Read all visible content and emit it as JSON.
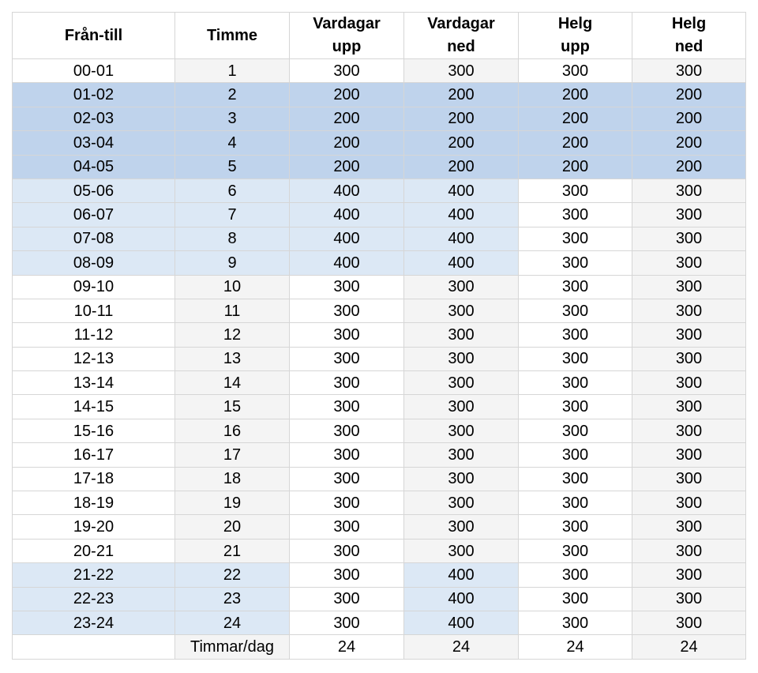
{
  "headers": [
    {
      "line1": "Från-till",
      "line2": ""
    },
    {
      "line1": "Timme",
      "line2": ""
    },
    {
      "line1": "Vardagar",
      "line2": "upp"
    },
    {
      "line1": "Vardagar",
      "line2": "ned"
    },
    {
      "line1": "Helg",
      "line2": "upp"
    },
    {
      "line1": "Helg",
      "line2": "ned"
    }
  ],
  "colors": {
    "white": "#ffffff",
    "gray": "#f4f4f4",
    "dark_blue": "#bfd3ec",
    "light_blue": "#dce8f5"
  },
  "rows": [
    {
      "cells": [
        "00-01",
        "1",
        "300",
        "300",
        "300",
        "300"
      ],
      "shade": [
        "w",
        "g",
        "w",
        "g",
        "w",
        "g"
      ]
    },
    {
      "cells": [
        "01-02",
        "2",
        "200",
        "200",
        "200",
        "200"
      ],
      "shade": [
        "d",
        "d",
        "d",
        "d",
        "d",
        "d"
      ]
    },
    {
      "cells": [
        "02-03",
        "3",
        "200",
        "200",
        "200",
        "200"
      ],
      "shade": [
        "d",
        "d",
        "d",
        "d",
        "d",
        "d"
      ]
    },
    {
      "cells": [
        "03-04",
        "4",
        "200",
        "200",
        "200",
        "200"
      ],
      "shade": [
        "d",
        "d",
        "d",
        "d",
        "d",
        "d"
      ]
    },
    {
      "cells": [
        "04-05",
        "5",
        "200",
        "200",
        "200",
        "200"
      ],
      "shade": [
        "d",
        "d",
        "d",
        "d",
        "d",
        "d"
      ]
    },
    {
      "cells": [
        "05-06",
        "6",
        "400",
        "400",
        "300",
        "300"
      ],
      "shade": [
        "l",
        "l",
        "l",
        "l",
        "w",
        "g"
      ]
    },
    {
      "cells": [
        "06-07",
        "7",
        "400",
        "400",
        "300",
        "300"
      ],
      "shade": [
        "l",
        "l",
        "l",
        "l",
        "w",
        "g"
      ]
    },
    {
      "cells": [
        "07-08",
        "8",
        "400",
        "400",
        "300",
        "300"
      ],
      "shade": [
        "l",
        "l",
        "l",
        "l",
        "w",
        "g"
      ]
    },
    {
      "cells": [
        "08-09",
        "9",
        "400",
        "400",
        "300",
        "300"
      ],
      "shade": [
        "l",
        "l",
        "l",
        "l",
        "w",
        "g"
      ]
    },
    {
      "cells": [
        "09-10",
        "10",
        "300",
        "300",
        "300",
        "300"
      ],
      "shade": [
        "w",
        "g",
        "w",
        "g",
        "w",
        "g"
      ]
    },
    {
      "cells": [
        "10-11",
        "11",
        "300",
        "300",
        "300",
        "300"
      ],
      "shade": [
        "w",
        "g",
        "w",
        "g",
        "w",
        "g"
      ]
    },
    {
      "cells": [
        "11-12",
        "12",
        "300",
        "300",
        "300",
        "300"
      ],
      "shade": [
        "w",
        "g",
        "w",
        "g",
        "w",
        "g"
      ]
    },
    {
      "cells": [
        "12-13",
        "13",
        "300",
        "300",
        "300",
        "300"
      ],
      "shade": [
        "w",
        "g",
        "w",
        "g",
        "w",
        "g"
      ]
    },
    {
      "cells": [
        "13-14",
        "14",
        "300",
        "300",
        "300",
        "300"
      ],
      "shade": [
        "w",
        "g",
        "w",
        "g",
        "w",
        "g"
      ]
    },
    {
      "cells": [
        "14-15",
        "15",
        "300",
        "300",
        "300",
        "300"
      ],
      "shade": [
        "w",
        "g",
        "w",
        "g",
        "w",
        "g"
      ]
    },
    {
      "cells": [
        "15-16",
        "16",
        "300",
        "300",
        "300",
        "300"
      ],
      "shade": [
        "w",
        "g",
        "w",
        "g",
        "w",
        "g"
      ]
    },
    {
      "cells": [
        "16-17",
        "17",
        "300",
        "300",
        "300",
        "300"
      ],
      "shade": [
        "w",
        "g",
        "w",
        "g",
        "w",
        "g"
      ]
    },
    {
      "cells": [
        "17-18",
        "18",
        "300",
        "300",
        "300",
        "300"
      ],
      "shade": [
        "w",
        "g",
        "w",
        "g",
        "w",
        "g"
      ]
    },
    {
      "cells": [
        "18-19",
        "19",
        "300",
        "300",
        "300",
        "300"
      ],
      "shade": [
        "w",
        "g",
        "w",
        "g",
        "w",
        "g"
      ]
    },
    {
      "cells": [
        "19-20",
        "20",
        "300",
        "300",
        "300",
        "300"
      ],
      "shade": [
        "w",
        "g",
        "w",
        "g",
        "w",
        "g"
      ]
    },
    {
      "cells": [
        "20-21",
        "21",
        "300",
        "300",
        "300",
        "300"
      ],
      "shade": [
        "w",
        "g",
        "w",
        "g",
        "w",
        "g"
      ]
    },
    {
      "cells": [
        "21-22",
        "22",
        "300",
        "400",
        "300",
        "300"
      ],
      "shade": [
        "l",
        "l",
        "w",
        "l",
        "w",
        "g"
      ]
    },
    {
      "cells": [
        "22-23",
        "23",
        "300",
        "400",
        "300",
        "300"
      ],
      "shade": [
        "l",
        "l",
        "w",
        "l",
        "w",
        "g"
      ]
    },
    {
      "cells": [
        "23-24",
        "24",
        "300",
        "400",
        "300",
        "300"
      ],
      "shade": [
        "l",
        "l",
        "w",
        "l",
        "w",
        "g"
      ]
    }
  ],
  "footer": {
    "cells": [
      "",
      "Timmar/dag",
      "24",
      "24",
      "24",
      "24"
    ],
    "shade": [
      "w",
      "g",
      "w",
      "g",
      "w",
      "g"
    ]
  }
}
